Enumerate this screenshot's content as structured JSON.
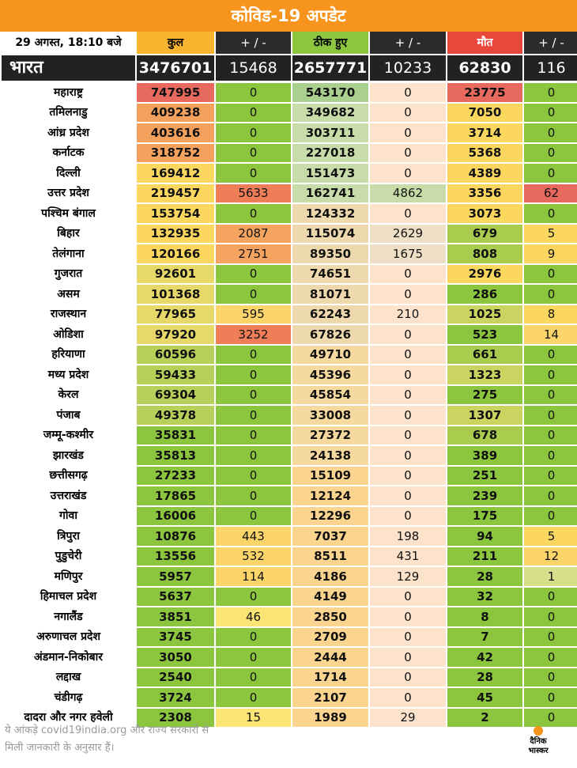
{
  "title": "कोविड-19 अपडेट",
  "header": {
    "date": "29 अगस्त, 18:10 बजे",
    "total": "कुल",
    "total_change": "+ / -",
    "recovered": "ठीक हुए",
    "recovered_change": "+ / -",
    "deaths": "मौत",
    "deaths_change": "+ / -"
  },
  "national": {
    "name": "भारत",
    "total": "3476701",
    "total_change": "15468",
    "recovered": "2657771",
    "recovered_change": "10233",
    "deaths": "62830",
    "deaths_change": "116"
  },
  "states": [
    {
      "name": "महाराष्ट्र",
      "total": "747995",
      "total_change": "0",
      "recovered": "543170",
      "recovered_change": "0",
      "deaths": "23775",
      "deaths_change": "0"
    },
    {
      "name": "तमिलनाडु",
      "total": "409238",
      "total_change": "0",
      "recovered": "349682",
      "recovered_change": "0",
      "deaths": "7050",
      "deaths_change": "0"
    },
    {
      "name": "आंध्र प्रदेश",
      "total": "403616",
      "total_change": "0",
      "recovered": "303711",
      "recovered_change": "0",
      "deaths": "3714",
      "deaths_change": "0"
    },
    {
      "name": "कर्नाटक",
      "total": "318752",
      "total_change": "0",
      "recovered": "227018",
      "recovered_change": "0",
      "deaths": "5368",
      "deaths_change": "0"
    },
    {
      "name": "दिल्ली",
      "total": "169412",
      "total_change": "0",
      "recovered": "151473",
      "recovered_change": "0",
      "deaths": "4389",
      "deaths_change": "0"
    },
    {
      "name": "उत्तर प्रदेश",
      "total": "219457",
      "total_change": "5633",
      "recovered": "162741",
      "recovered_change": "4862",
      "deaths": "3356",
      "deaths_change": "62"
    },
    {
      "name": "पश्चिम बंगाल",
      "total": "153754",
      "total_change": "0",
      "recovered": "124332",
      "recovered_change": "0",
      "deaths": "3073",
      "deaths_change": "0"
    },
    {
      "name": "बिहार",
      "total": "132935",
      "total_change": "2087",
      "recovered": "115074",
      "recovered_change": "2629",
      "deaths": "679",
      "deaths_change": "5"
    },
    {
      "name": "तेलंगाना",
      "total": "120166",
      "total_change": "2751",
      "recovered": "89350",
      "recovered_change": "1675",
      "deaths": "808",
      "deaths_change": "9"
    },
    {
      "name": "गुजरात",
      "total": "92601",
      "total_change": "0",
      "recovered": "74651",
      "recovered_change": "0",
      "deaths": "2976",
      "deaths_change": "0"
    },
    {
      "name": "असम",
      "total": "101368",
      "total_change": "0",
      "recovered": "81071",
      "recovered_change": "0",
      "deaths": "286",
      "deaths_change": "0"
    },
    {
      "name": "राजस्थान",
      "total": "77965",
      "total_change": "595",
      "recovered": "62243",
      "recovered_change": "210",
      "deaths": "1025",
      "deaths_change": "8"
    },
    {
      "name": "ओडिशा",
      "total": "97920",
      "total_change": "3252",
      "recovered": "67826",
      "recovered_change": "0",
      "deaths": "523",
      "deaths_change": "14"
    },
    {
      "name": "हरियाणा",
      "total": "60596",
      "total_change": "0",
      "recovered": "49710",
      "recovered_change": "0",
      "deaths": "661",
      "deaths_change": "0"
    },
    {
      "name": "मध्य प्रदेश",
      "total": "59433",
      "total_change": "0",
      "recovered": "45396",
      "recovered_change": "0",
      "deaths": "1323",
      "deaths_change": "0"
    },
    {
      "name": "केरल",
      "total": "69304",
      "total_change": "0",
      "recovered": "45854",
      "recovered_change": "0",
      "deaths": "275",
      "deaths_change": "0"
    },
    {
      "name": "पंजाब",
      "total": "49378",
      "total_change": "0",
      "recovered": "33008",
      "recovered_change": "0",
      "deaths": "1307",
      "deaths_change": "0"
    },
    {
      "name": "जम्मू-कश्मीर",
      "total": "35831",
      "total_change": "0",
      "recovered": "27372",
      "recovered_change": "0",
      "deaths": "678",
      "deaths_change": "0"
    },
    {
      "name": "झारखंड",
      "total": "35813",
      "total_change": "0",
      "recovered": "24138",
      "recovered_change": "0",
      "deaths": "389",
      "deaths_change": "0"
    },
    {
      "name": "छत्तीसगढ़",
      "total": "27233",
      "total_change": "0",
      "recovered": "15109",
      "recovered_change": "0",
      "deaths": "251",
      "deaths_change": "0"
    },
    {
      "name": "उत्तराखंड",
      "total": "17865",
      "total_change": "0",
      "recovered": "12124",
      "recovered_change": "0",
      "deaths": "239",
      "deaths_change": "0"
    },
    {
      "name": "गोवा",
      "total": "16006",
      "total_change": "0",
      "recovered": "12296",
      "recovered_change": "0",
      "deaths": "175",
      "deaths_change": "0"
    },
    {
      "name": "त्रिपुरा",
      "total": "10876",
      "total_change": "443",
      "recovered": "7037",
      "recovered_change": "198",
      "deaths": "94",
      "deaths_change": "5"
    },
    {
      "name": "पुडुचेरी",
      "total": "13556",
      "total_change": "532",
      "recovered": "8511",
      "recovered_change": "431",
      "deaths": "211",
      "deaths_change": "12"
    },
    {
      "name": "मणिपुर",
      "total": "5957",
      "total_change": "114",
      "recovered": "4186",
      "recovered_change": "129",
      "deaths": "28",
      "deaths_change": "1"
    },
    {
      "name": "हिमाचल प्रदेश",
      "total": "5637",
      "total_change": "0",
      "recovered": "4149",
      "recovered_change": "0",
      "deaths": "32",
      "deaths_change": "0"
    },
    {
      "name": "नगालैंड",
      "total": "3851",
      "total_change": "46",
      "recovered": "2850",
      "recovered_change": "0",
      "deaths": "8",
      "deaths_change": "0"
    },
    {
      "name": "अरुणाचल प्रदेश",
      "total": "3745",
      "total_change": "0",
      "recovered": "2709",
      "recovered_change": "0",
      "deaths": "7",
      "deaths_change": "0"
    },
    {
      "name": "अंडमान-निकोबार",
      "total": "3050",
      "total_change": "0",
      "recovered": "2444",
      "recovered_change": "0",
      "deaths": "42",
      "deaths_change": "0"
    },
    {
      "name": "लद्दाख",
      "total": "2540",
      "total_change": "0",
      "recovered": "1714",
      "recovered_change": "0",
      "deaths": "28",
      "deaths_change": "0"
    },
    {
      "name": "चंडीगढ़",
      "total": "3724",
      "total_change": "0",
      "recovered": "2107",
      "recovered_change": "0",
      "deaths": "45",
      "deaths_change": "0"
    },
    {
      "name": "दादरा और नगर हवेली",
      "total": "2308",
      "total_change": "15",
      "recovered": "1989",
      "recovered_change": "29",
      "deaths": "2",
      "deaths_change": "0"
    }
  ],
  "colors": {
    "header_orange": "#f7941d",
    "total_header": "#f9b52f",
    "recovered_header": "#8cc63f",
    "deaths_header": "#e8473b",
    "dark_row": "#222222",
    "high_red": "#e8695e",
    "orange": "#f3a15c",
    "yellow": "#fbd760",
    "green": "#8cc63f",
    "pale_peach": "#fde3cc",
    "pale_green": "#c8dcaa"
  },
  "footer": {
    "line1": "ये आंकड़े covid19india.org और राज्य सरकारों से",
    "line2": "मिली जानकारी के अनुसार हैं।"
  },
  "logo": {
    "line1": "दैनिक",
    "line2": "भास्कर"
  }
}
